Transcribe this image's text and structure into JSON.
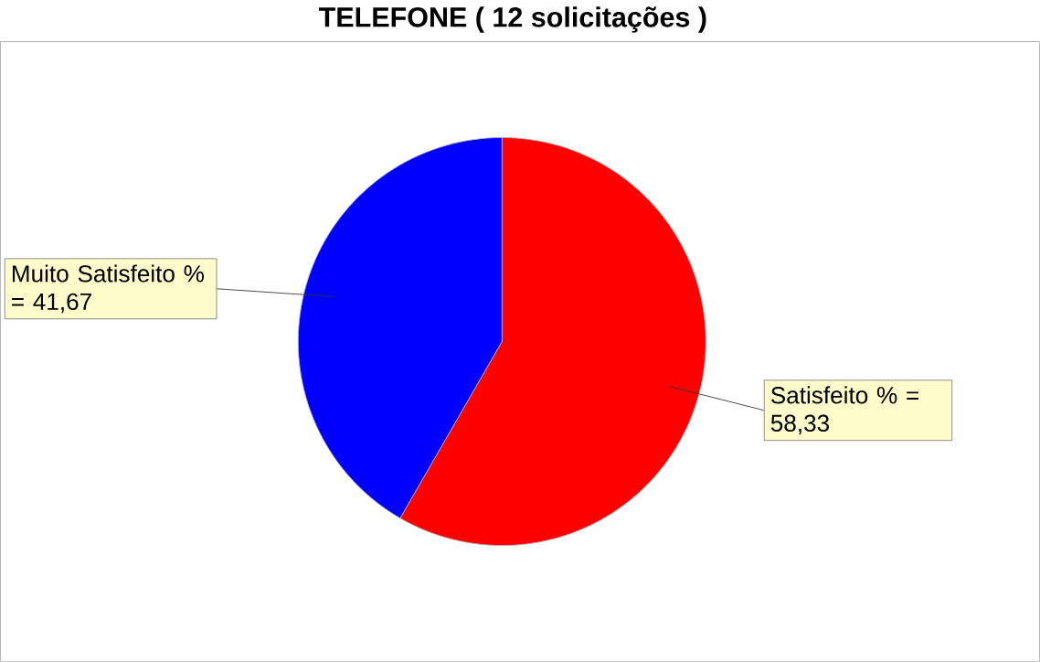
{
  "chart_data": {
    "type": "pie",
    "title": "TELEFONE ( 12 solicitações )",
    "categories": [
      "Satisfeito",
      "Muito Satisfeito"
    ],
    "values": [
      58.33,
      41.67
    ],
    "colors": [
      "#ff0000",
      "#0000ff"
    ],
    "value_labels": [
      "% = 58,33",
      "% = 41,67"
    ]
  }
}
